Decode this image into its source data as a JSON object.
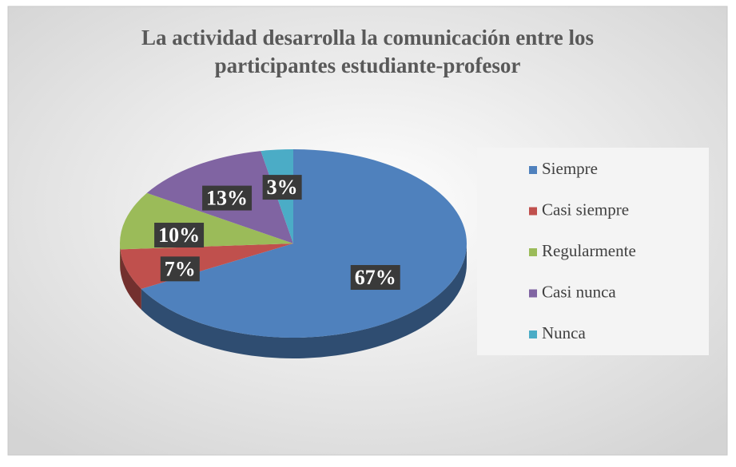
{
  "chart_data": {
    "type": "pie",
    "title": "La actividad desarrolla la comunicación entre los participantes estudiante-profesor",
    "categories": [
      "Siempre",
      "Casi siempre",
      "Regularmente",
      "Casi nunca",
      "Nunca"
    ],
    "values": [
      67,
      7,
      10,
      13,
      3
    ],
    "value_labels": [
      "67%",
      "7%",
      "10%",
      "13%",
      "3%"
    ],
    "colors": [
      "#4f81bd",
      "#c0504d",
      "#9bbb59",
      "#8064a2",
      "#4bacc6"
    ],
    "legend": "right"
  }
}
